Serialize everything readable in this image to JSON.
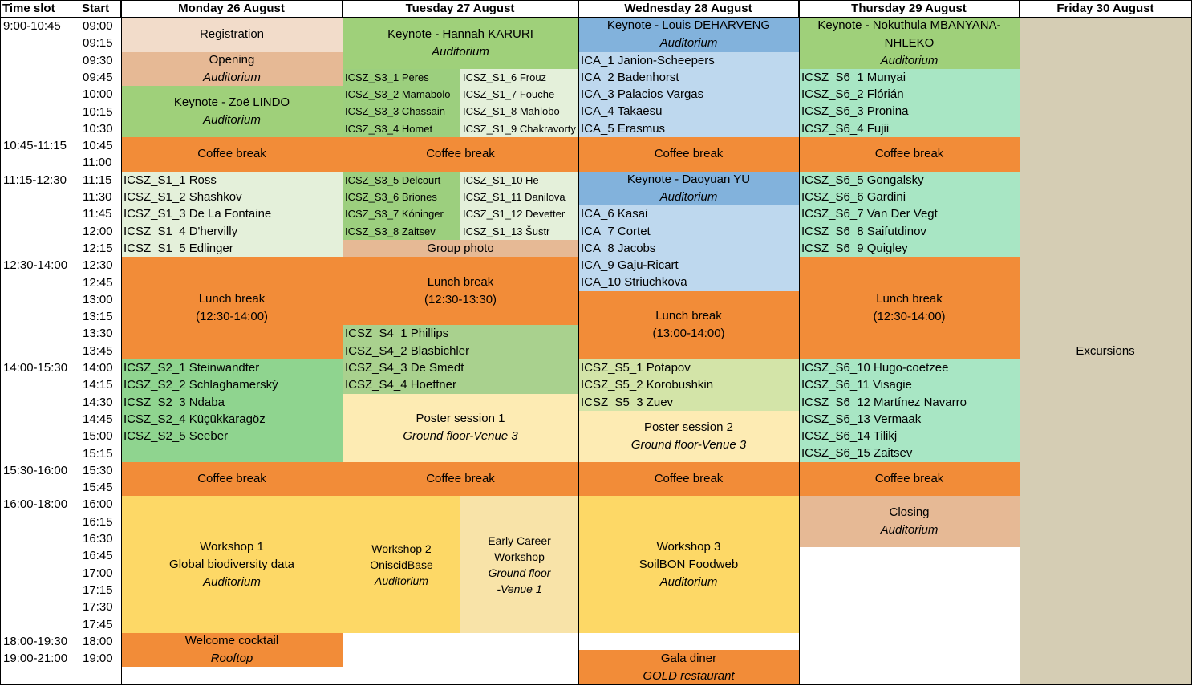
{
  "header": {
    "time_slot": "Time slot",
    "start": "Start",
    "days": [
      "Monday 26 August",
      "Tuesday 27 August",
      "Wednesday 28 August",
      "Thursday 29 August",
      "Friday 30 August"
    ]
  },
  "time_slots": [
    "9:00-10:45",
    "10:45-11:15",
    "11:15-12:30",
    "12:30-14:00",
    "14:00-15:30",
    "15:30-16:00",
    "16:00-18:00",
    "18:00-19:30",
    "19:00-21:00"
  ],
  "starts": [
    "09:00",
    "09:15",
    "09:30",
    "09:45",
    "10:00",
    "10:15",
    "10:30",
    "10:45",
    "11:00",
    "11:15",
    "11:30",
    "11:45",
    "12:00",
    "12:15",
    "12:30",
    "12:45",
    "13:00",
    "13:15",
    "13:30",
    "13:45",
    "14:00",
    "14:15",
    "14:30",
    "14:45",
    "15:00",
    "15:15",
    "15:30",
    "15:45",
    "16:00",
    "16:15",
    "16:30",
    "16:45",
    "17:00",
    "17:15",
    "17:30",
    "17:45",
    "18:00",
    "19:00"
  ],
  "blocks": [
    {
      "name": "registration",
      "col": "mon",
      "rows": [
        0,
        2
      ],
      "color": "#f2dcca",
      "lines": [
        "Registration"
      ]
    },
    {
      "name": "opening",
      "col": "mon",
      "rows": [
        2,
        4
      ],
      "color": "#e6b995",
      "lines": [
        "Opening"
      ],
      "italic": [
        "Auditorium"
      ]
    },
    {
      "name": "keynote-lindo",
      "col": "mon",
      "rows": [
        4,
        7
      ],
      "color": "#9fd07a",
      "lines": [
        "Keynote - Zoë LINDO"
      ],
      "italic": [
        "Auditorium"
      ]
    },
    {
      "name": "coffee-mon-1",
      "col": "mon",
      "rows": [
        7,
        9
      ],
      "color": "#f28c38",
      "lines": [
        "Coffee break"
      ]
    },
    {
      "name": "session-s1-mon",
      "col": "mon",
      "rows": [
        9,
        14
      ],
      "color": "#e4f0da",
      "list": [
        "ICSZ_S1_1 Ross",
        "ICSZ_S1_2 Shashkov",
        "ICSZ_S1_3 De La Fontaine",
        "ICSZ_S1_4 D'hervilly",
        "ICSZ_S1_5 Edlinger"
      ]
    },
    {
      "name": "lunch-mon",
      "col": "mon",
      "rows": [
        14,
        20
      ],
      "color": "#f28c38",
      "lines": [
        "Lunch break",
        "(12:30-14:00)"
      ]
    },
    {
      "name": "session-s2-mon",
      "col": "mon",
      "rows": [
        20,
        26
      ],
      "color": "#8fd48f",
      "list": [
        "ICSZ_S2_1 Steinwandter",
        "ICSZ_S2_2 Schlaghamerský",
        "ICSZ_S2_3 Ndaba",
        "ICSZ_S2_4 Küçükkaragöz",
        "ICSZ_S2_5 Seeber"
      ]
    },
    {
      "name": "coffee-mon-2",
      "col": "mon",
      "rows": [
        26,
        28
      ],
      "color": "#f28c38",
      "lines": [
        "Coffee break"
      ]
    },
    {
      "name": "workshop-1",
      "col": "mon",
      "rows": [
        28,
        36
      ],
      "color": "#fdd866",
      "lines": [
        "Workshop 1",
        "Global biodiversity data"
      ],
      "italic": [
        "Auditorium"
      ]
    },
    {
      "name": "welcome-cocktail",
      "col": "mon",
      "rows": [
        36,
        38
      ],
      "color": "#f28c38",
      "lines": [
        "Welcome cocktail"
      ],
      "italic": [
        "Rooftop"
      ]
    },
    {
      "name": "keynote-karuri",
      "col": "tue",
      "rows": [
        0,
        3
      ],
      "color": "#9fd07a",
      "lines": [
        "Keynote - Hannah KARURI"
      ],
      "italic": [
        "Auditorium"
      ]
    },
    {
      "name": "session-s3-tue-a",
      "col": "tueA",
      "rows": [
        3,
        7
      ],
      "color": "#9ccf7e",
      "list": [
        "ICSZ_S3_1 Peres",
        "ICSZ_S3_2 Mamabolo",
        "ICSZ_S3_3 Chassain",
        "ICSZ_S3_4 Homet"
      ],
      "small": true
    },
    {
      "name": "session-s1-tue-b",
      "col": "tueB",
      "rows": [
        3,
        7
      ],
      "color": "#e4f0da",
      "list": [
        "ICSZ_S1_6 Frouz",
        "ICSZ_S1_7 Fouche",
        "ICSZ_S1_8 Mahlobo",
        "ICSZ_S1_9 Chakravorty"
      ],
      "small": true
    },
    {
      "name": "coffee-tue-1",
      "col": "tue",
      "rows": [
        7,
        9
      ],
      "color": "#f28c38",
      "lines": [
        "Coffee break"
      ]
    },
    {
      "name": "session-s3-tue-c",
      "col": "tueA",
      "rows": [
        9,
        13
      ],
      "color": "#9ccf7e",
      "list": [
        "ICSZ_S3_5 Delcourt",
        "ICSZ_S3_6 Briones",
        "ICSZ_S3_7 Kóninger",
        "ICSZ_S3_8 Zaitsev"
      ],
      "small": true
    },
    {
      "name": "session-s1-tue-d",
      "col": "tueB",
      "rows": [
        9,
        13
      ],
      "color": "#e4f0da",
      "list": [
        "ICSZ_S1_10 He",
        "ICSZ_S1_11 Danilova",
        "ICSZ_S1_12 Devetter",
        "ICSZ_S1_13 Šustr"
      ],
      "small": true
    },
    {
      "name": "group-photo",
      "col": "tue",
      "rows": [
        13,
        14
      ],
      "color": "#e6b995",
      "lines": [
        "Group photo"
      ]
    },
    {
      "name": "lunch-tue",
      "col": "tue",
      "rows": [
        14,
        18
      ],
      "color": "#f28c38",
      "lines": [
        "Lunch break",
        "(12:30-13:30)"
      ]
    },
    {
      "name": "session-s4-tue",
      "col": "tue",
      "rows": [
        18,
        22
      ],
      "color": "#a9d18e",
      "list": [
        "ICSZ_S4_1 Phillips",
        "ICSZ_S4_2 Blasbichler",
        "ICSZ_S4_3 De Smedt",
        "ICSZ_S4_4 Hoeffner"
      ]
    },
    {
      "name": "poster-session-1",
      "col": "tue",
      "rows": [
        22,
        26
      ],
      "color": "#fdebb3",
      "lines": [
        "Poster session 1"
      ],
      "italic": [
        "Ground floor-Venue 3"
      ]
    },
    {
      "name": "coffee-tue-2",
      "col": "tue",
      "rows": [
        26,
        28
      ],
      "color": "#f28c38",
      "lines": [
        "Coffee break"
      ]
    },
    {
      "name": "workshop-2",
      "col": "tueA",
      "rows": [
        28,
        36
      ],
      "color": "#fdd866",
      "lines": [
        "Workshop 2",
        "OniscidBase"
      ],
      "italic": [
        "Auditorium"
      ],
      "small": true
    },
    {
      "name": "early-career-workshop",
      "col": "tueB",
      "rows": [
        28,
        36
      ],
      "color": "#f8e3a8",
      "lines": [
        "Early Career",
        "Workshop"
      ],
      "italic": [
        "Ground floor",
        "-Venue 1"
      ],
      "small": true
    },
    {
      "name": "keynote-deharveng",
      "col": "wed",
      "rows": [
        0,
        2
      ],
      "color": "#82b2dc",
      "lines": [
        "Keynote - Louis DEHARVENG"
      ],
      "italic": [
        "Auditorium"
      ]
    },
    {
      "name": "session-ica-wed-1",
      "col": "wed",
      "rows": [
        2,
        7
      ],
      "color": "#bed8ee",
      "list": [
        "ICA_1 Janion-Scheepers",
        "ICA_2 Badenhorst",
        "ICA_3 Palacios Vargas",
        "ICA_4 Takaesu",
        "ICA_5 Erasmus"
      ]
    },
    {
      "name": "coffee-wed-1",
      "col": "wed",
      "rows": [
        7,
        9
      ],
      "color": "#f28c38",
      "lines": [
        "Coffee break"
      ]
    },
    {
      "name": "keynote-yu",
      "col": "wed",
      "rows": [
        9,
        11
      ],
      "color": "#82b2dc",
      "lines": [
        "Keynote - Daoyuan YU"
      ],
      "italic": [
        "Auditorium"
      ]
    },
    {
      "name": "session-ica-wed-2",
      "col": "wed",
      "rows": [
        11,
        16
      ],
      "color": "#bed8ee",
      "list": [
        "ICA_6 Kasai",
        "ICA_7 Cortet",
        "ICA_8 Jacobs",
        "ICA_9 Gaju-Ricart",
        "ICA_10 Striuchkova"
      ]
    },
    {
      "name": "lunch-wed",
      "col": "wed",
      "rows": [
        16,
        20
      ],
      "color": "#f28c38",
      "lines": [
        "Lunch break",
        "(13:00-14:00)"
      ]
    },
    {
      "name": "session-s5-wed",
      "col": "wed",
      "rows": [
        20,
        23
      ],
      "color": "#d3e4a8",
      "list": [
        "ICSZ_S5_1 Potapov",
        "ICSZ_S5_2 Korobushkin",
        "ICSZ_S5_3 Zuev"
      ]
    },
    {
      "name": "poster-session-2",
      "col": "wed",
      "rows": [
        23,
        26
      ],
      "color": "#fdebb3",
      "lines": [
        "Poster session 2"
      ],
      "italic": [
        "Ground floor-Venue 3"
      ]
    },
    {
      "name": "coffee-wed-2",
      "col": "wed",
      "rows": [
        26,
        28
      ],
      "color": "#f28c38",
      "lines": [
        "Coffee break"
      ]
    },
    {
      "name": "workshop-3",
      "col": "wed",
      "rows": [
        28,
        36
      ],
      "color": "#fdd866",
      "lines": [
        "Workshop 3",
        "SoilBON Foodweb"
      ],
      "italic": [
        "Auditorium"
      ]
    },
    {
      "name": "gala-diner",
      "col": "wed",
      "rows": [
        37,
        38
      ],
      "color": "#f28c38",
      "lines": [
        "Gala diner"
      ],
      "italic": [
        "GOLD restaurant"
      ],
      "extend": true
    },
    {
      "name": "keynote-mbanyana",
      "col": "thu",
      "rows": [
        0,
        3
      ],
      "color": "#9fd07a",
      "lines": [
        "Keynote - Nokuthula MBANYANA-",
        "NHLEKO"
      ],
      "italic": [
        "Auditorium"
      ]
    },
    {
      "name": "session-s6-thu-1",
      "col": "thu",
      "rows": [
        3,
        7
      ],
      "color": "#a8e6c4",
      "list": [
        "ICSZ_S6_1 Munyai",
        "ICSZ_S6_2 Flórián",
        "ICSZ_S6_3 Pronina",
        "ICSZ_S6_4 Fujii"
      ]
    },
    {
      "name": "coffee-thu-1",
      "col": "thu",
      "rows": [
        7,
        9
      ],
      "color": "#f28c38",
      "lines": [
        "Coffee break"
      ]
    },
    {
      "name": "session-s6-thu-2",
      "col": "thu",
      "rows": [
        9,
        14
      ],
      "color": "#a8e6c4",
      "list": [
        "ICSZ_S6_5 Gongalsky",
        "ICSZ_S6_6 Gardini",
        "ICSZ_S6_7 Van Der Vegt",
        "ICSZ_S6_8 Saifutdinov",
        "ICSZ_S6_9 Quigley"
      ]
    },
    {
      "name": "lunch-thu",
      "col": "thu",
      "rows": [
        14,
        20
      ],
      "color": "#f28c38",
      "lines": [
        "Lunch break",
        "(12:30-14:00)"
      ]
    },
    {
      "name": "session-s6-thu-3",
      "col": "thu",
      "rows": [
        20,
        26
      ],
      "color": "#a8e6c4",
      "list": [
        "ICSZ_S6_10 Hugo-coetzee",
        "ICSZ_S6_11 Visagie",
        "ICSZ_S6_12 Martínez Navarro",
        "ICSZ_S6_13 Vermaak",
        "ICSZ_S6_14 Tilikj",
        "ICSZ_S6_15 Zaitsev"
      ]
    },
    {
      "name": "coffee-thu-2",
      "col": "thu",
      "rows": [
        26,
        28
      ],
      "color": "#f28c38",
      "lines": [
        "Coffee break"
      ]
    },
    {
      "name": "closing",
      "col": "thu",
      "rows": [
        28,
        31
      ],
      "color": "#e6b995",
      "lines": [
        "Closing"
      ],
      "italic": [
        "Auditorium"
      ]
    },
    {
      "name": "excursions",
      "col": "fri",
      "rows": [
        0,
        38
      ],
      "color": "#d5cdb4",
      "lines": [
        "Excursions"
      ],
      "extend": true
    }
  ]
}
